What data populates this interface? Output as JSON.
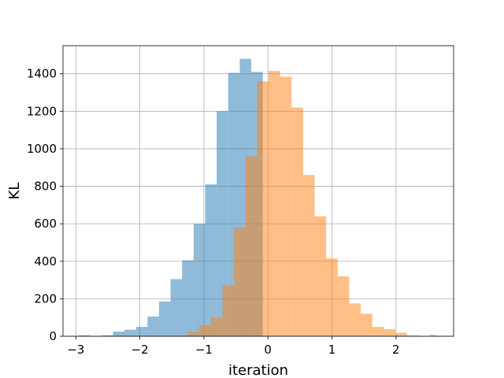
{
  "chart_data": {
    "type": "histogram",
    "title": "",
    "xlabel": "iteration",
    "ylabel": "KL",
    "xlim": [
      -3.2,
      2.9
    ],
    "ylim": [
      0,
      1550
    ],
    "xticks": [
      -3,
      -2,
      -1,
      0,
      1,
      2
    ],
    "yticks": [
      0,
      200,
      400,
      600,
      800,
      1000,
      1200,
      1400
    ],
    "grid": true,
    "colors": {
      "series_a": "#1f77b4",
      "series_b": "#ff7f0e",
      "grid": "#b0b0b0",
      "spine": "#000000"
    },
    "series": [
      {
        "alpha": 0.5,
        "color": "#1f77b4",
        "bin_edges": [
          -2.96,
          -2.78,
          -2.6,
          -2.42,
          -2.24,
          -2.06,
          -1.88,
          -1.7,
          -1.52,
          -1.34,
          -1.16,
          -0.98,
          -0.8,
          -0.62,
          -0.44,
          -0.26,
          -0.08
        ],
        "counts": [
          5,
          2,
          5,
          25,
          35,
          50,
          105,
          185,
          305,
          405,
          600,
          810,
          1200,
          1405,
          1480,
          1410
        ]
      },
      {
        "alpha": 0.5,
        "color": "#ff7f0e",
        "bin_edges": [
          -1.25,
          -1.07,
          -0.89,
          -0.71,
          -0.53,
          -0.35,
          -0.17,
          0.01,
          0.19,
          0.37,
          0.55,
          0.73,
          0.91,
          1.09,
          1.27,
          1.45,
          1.63,
          1.81,
          1.99,
          2.17,
          2.35,
          2.53,
          2.62
        ],
        "counts": [
          25,
          60,
          100,
          270,
          580,
          960,
          1360,
          1415,
          1385,
          1220,
          860,
          640,
          415,
          320,
          175,
          120,
          50,
          38,
          18,
          5,
          2,
          8
        ]
      }
    ]
  }
}
